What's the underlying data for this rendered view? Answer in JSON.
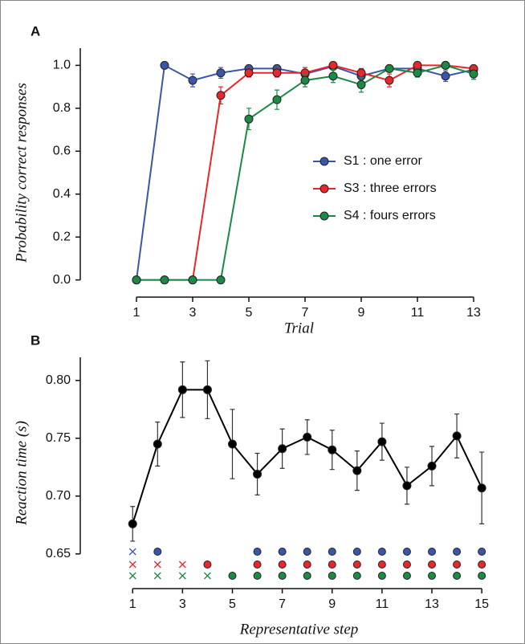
{
  "chart_data": [
    {
      "type": "line",
      "panel": "A",
      "xlabel": "Trial",
      "ylabel": "Probability correct responses",
      "x": [
        1,
        2,
        3,
        4,
        5,
        6,
        7,
        8,
        9,
        10,
        11,
        12,
        13
      ],
      "xlim": [
        -1,
        14
      ],
      "ylim": [
        -0.08,
        1.08
      ],
      "xticks": [
        1,
        3,
        5,
        7,
        9,
        11,
        13
      ],
      "yticks": [
        {
          "value": 0,
          "label": "0.0"
        },
        0.2,
        0.4,
        0.6,
        0.8,
        {
          "value": 1,
          "label": "1.0"
        }
      ],
      "legend": "center right",
      "series": [
        {
          "name": "S1 : one error",
          "color": "#3b56a8",
          "values": [
            0,
            1.0,
            0.93,
            0.965,
            0.985,
            0.985,
            0.96,
            0.995,
            0.95,
            0.985,
            0.985,
            0.95,
            0.98
          ],
          "errors": [
            0,
            0,
            0.03,
            0.025,
            0.015,
            0.015,
            0.03,
            0.01,
            0.03,
            0.015,
            0.02,
            0.025,
            0.02
          ]
        },
        {
          "name": "S3 : three errors",
          "color": "#e8262b",
          "values": [
            0,
            0,
            0,
            0.86,
            0.965,
            0.965,
            0.965,
            1.0,
            0.965,
            0.93,
            1.0,
            1.0,
            0.985
          ],
          "errors": [
            0,
            0,
            0,
            0.04,
            0.02,
            0.02,
            0.025,
            0.01,
            0.02,
            0.03,
            0.01,
            0.01,
            0.015
          ]
        },
        {
          "name": "S4 : fours errors",
          "color": "#1b8a45",
          "values": [
            0,
            0,
            0,
            0,
            0.75,
            0.84,
            0.93,
            0.95,
            0.91,
            0.985,
            0.965,
            1.0,
            0.96
          ],
          "errors": [
            0,
            0,
            0,
            0,
            0.05,
            0.045,
            0.03,
            0.03,
            0.035,
            0.015,
            0.02,
            0.01,
            0.025
          ]
        }
      ]
    },
    {
      "type": "line",
      "panel": "B",
      "xlabel": "Representative step",
      "ylabel": "Reaction time (s)",
      "x": [
        1,
        2,
        3,
        4,
        5,
        6,
        7,
        8,
        9,
        10,
        11,
        12,
        13,
        14,
        15
      ],
      "xlim": [
        -1.1,
        15.8
      ],
      "ylim": [
        0.62,
        0.82
      ],
      "xticks": [
        1,
        3,
        5,
        7,
        9,
        11,
        13,
        15
      ],
      "yticks": [
        0.65,
        {
          "value": 0.7,
          "label": "0.70"
        },
        0.75,
        {
          "value": 0.8,
          "label": "0.80"
        }
      ],
      "series": [
        {
          "color": "#000000",
          "values": [
            0.676,
            0.745,
            0.792,
            0.792,
            0.745,
            0.719,
            0.741,
            0.751,
            0.74,
            0.722,
            0.747,
            0.709,
            0.726,
            0.752,
            0.707
          ],
          "errors": [
            0.015,
            0.019,
            0.024,
            0.025,
            0.03,
            0.018,
            0.017,
            0.015,
            0.017,
            0.017,
            0.016,
            0.016,
            0.017,
            0.019,
            0.031
          ]
        }
      ],
      "indicators": [
        {
          "color": "#3b56a8",
          "symbols": [
            "x",
            "o",
            null,
            null,
            null,
            "o",
            "o",
            "o",
            "o",
            "o",
            "o",
            "o",
            "o",
            "o",
            "o"
          ]
        },
        {
          "color": "#e8262b",
          "symbols": [
            "x",
            "x",
            "x",
            "o",
            null,
            "o",
            "o",
            "o",
            "o",
            "o",
            "o",
            "o",
            "o",
            "o",
            "o"
          ]
        },
        {
          "color": "#1b8a45",
          "symbols": [
            "x",
            "x",
            "x",
            "x",
            "o",
            "o",
            "o",
            "o",
            "o",
            "o",
            "o",
            "o",
            "o",
            "o",
            "o"
          ]
        }
      ]
    }
  ]
}
